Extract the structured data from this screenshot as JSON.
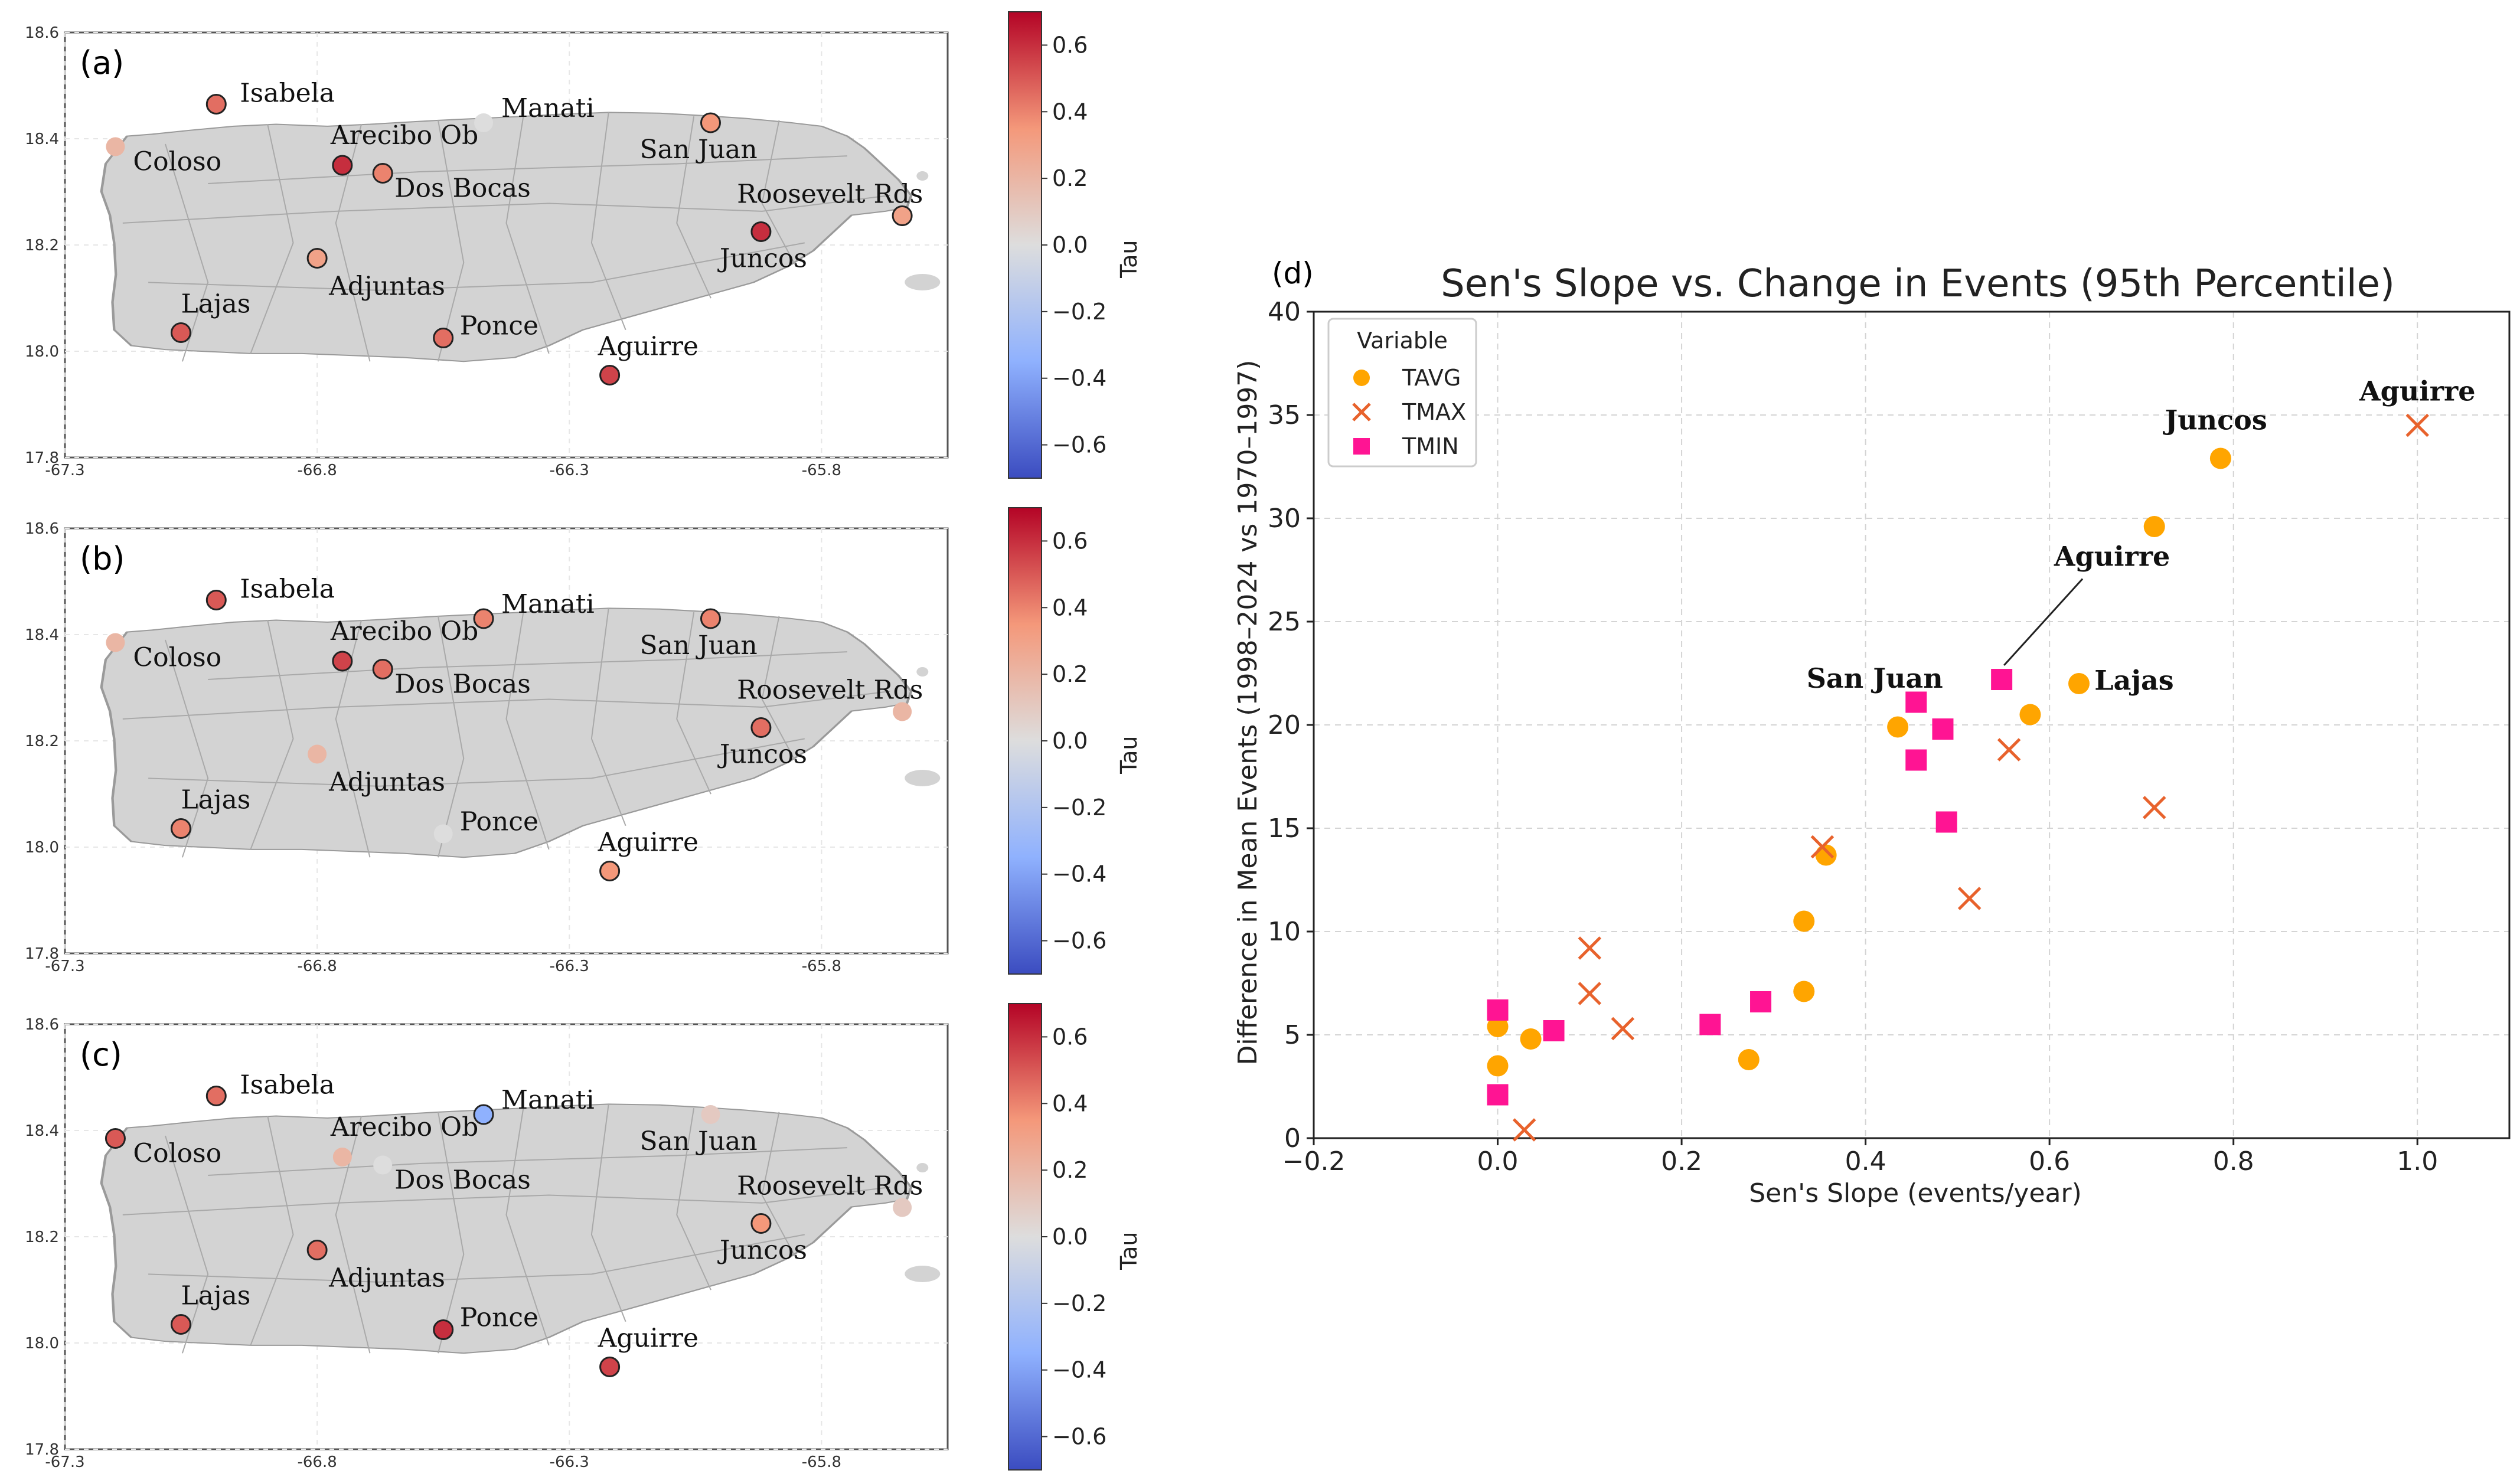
{
  "colors": {
    "land": "#d3d3d3",
    "border": "#a8a8a8",
    "ocean": "#ffffff",
    "tavg": "#ffa500",
    "tmax": "#e8622c",
    "tmin": "#ff1493",
    "grid": "#d4d4d4",
    "cmap_high": "#b40426",
    "cmap_mid": "#dddddd",
    "cmap_low": "#3b4cc0"
  },
  "maps": {
    "x_ticks": [
      "-67.3",
      "-66.8",
      "-66.3",
      "-65.8"
    ],
    "y_ticks": [
      "18.6",
      "18.4",
      "18.2",
      "18.0",
      "17.8"
    ],
    "x_tick_values": [
      -67.3,
      -66.8,
      -66.3,
      -65.8
    ],
    "y_tick_values": [
      18.6,
      18.4,
      18.2,
      18.0,
      17.8
    ],
    "lon_range": [
      -67.3,
      -65.55
    ],
    "lat_range": [
      17.8,
      18.6
    ],
    "colorbar_label": "Tau",
    "colorbar_ticks": [
      "0.6",
      "0.4",
      "0.2",
      "0.0",
      "−0.2",
      "−0.4",
      "−0.6"
    ],
    "colorbar_tick_values": [
      0.6,
      0.4,
      0.2,
      0.0,
      -0.2,
      -0.4,
      -0.6
    ],
    "colorbar_range": [
      -0.7,
      0.7
    ],
    "panels": [
      {
        "label": "(a)",
        "stations": [
          {
            "name": "Isabela",
            "lon": -67.0,
            "lat": 18.465,
            "tau": 0.45,
            "edge": true
          },
          {
            "name": "Coloso",
            "lon": -67.2,
            "lat": 18.385,
            "tau": 0.2,
            "edge": false
          },
          {
            "name": "Arecibo Ob",
            "lon": -66.75,
            "lat": 18.35,
            "tau": 0.6,
            "edge": true
          },
          {
            "name": "Dos Bocas",
            "lon": -66.67,
            "lat": 18.335,
            "tau": 0.4,
            "edge": true
          },
          {
            "name": "Manati",
            "lon": -66.47,
            "lat": 18.43,
            "tau": 0.0,
            "edge": false
          },
          {
            "name": "San Juan",
            "lon": -66.02,
            "lat": 18.43,
            "tau": 0.35,
            "edge": true
          },
          {
            "name": "Roosevelt Rds",
            "lon": -65.64,
            "lat": 18.255,
            "tau": 0.3,
            "edge": true
          },
          {
            "name": "Juncos",
            "lon": -65.92,
            "lat": 18.225,
            "tau": 0.6,
            "edge": true
          },
          {
            "name": "Adjuntas",
            "lon": -66.8,
            "lat": 18.175,
            "tau": 0.3,
            "edge": true
          },
          {
            "name": "Lajas",
            "lon": -67.07,
            "lat": 18.035,
            "tau": 0.5,
            "edge": true
          },
          {
            "name": "Ponce",
            "lon": -66.55,
            "lat": 18.025,
            "tau": 0.45,
            "edge": true
          },
          {
            "name": "Aguirre",
            "lon": -66.22,
            "lat": 17.955,
            "tau": 0.55,
            "edge": true
          }
        ]
      },
      {
        "label": "(b)",
        "stations": [
          {
            "name": "Isabela",
            "lon": -67.0,
            "lat": 18.465,
            "tau": 0.5,
            "edge": true
          },
          {
            "name": "Coloso",
            "lon": -67.2,
            "lat": 18.385,
            "tau": 0.2,
            "edge": false
          },
          {
            "name": "Arecibo Ob",
            "lon": -66.75,
            "lat": 18.35,
            "tau": 0.55,
            "edge": true
          },
          {
            "name": "Dos Bocas",
            "lon": -66.67,
            "lat": 18.335,
            "tau": 0.45,
            "edge": true
          },
          {
            "name": "Manati",
            "lon": -66.47,
            "lat": 18.43,
            "tau": 0.4,
            "edge": true
          },
          {
            "name": "San Juan",
            "lon": -66.02,
            "lat": 18.43,
            "tau": 0.4,
            "edge": true
          },
          {
            "name": "Roosevelt Rds",
            "lon": -65.64,
            "lat": 18.255,
            "tau": 0.2,
            "edge": false
          },
          {
            "name": "Juncos",
            "lon": -65.92,
            "lat": 18.225,
            "tau": 0.45,
            "edge": true
          },
          {
            "name": "Adjuntas",
            "lon": -66.8,
            "lat": 18.175,
            "tau": 0.2,
            "edge": false
          },
          {
            "name": "Lajas",
            "lon": -67.07,
            "lat": 18.035,
            "tau": 0.4,
            "edge": true
          },
          {
            "name": "Ponce",
            "lon": -66.55,
            "lat": 18.025,
            "tau": 0.0,
            "edge": false
          },
          {
            "name": "Aguirre",
            "lon": -66.22,
            "lat": 17.955,
            "tau": 0.35,
            "edge": true
          }
        ]
      },
      {
        "label": "(c)",
        "stations": [
          {
            "name": "Isabela",
            "lon": -67.0,
            "lat": 18.465,
            "tau": 0.45,
            "edge": true
          },
          {
            "name": "Coloso",
            "lon": -67.2,
            "lat": 18.385,
            "tau": 0.5,
            "edge": true
          },
          {
            "name": "Arecibo Ob",
            "lon": -66.75,
            "lat": 18.35,
            "tau": 0.2,
            "edge": false
          },
          {
            "name": "Dos Bocas",
            "lon": -66.67,
            "lat": 18.335,
            "tau": 0.0,
            "edge": false
          },
          {
            "name": "Manati",
            "lon": -66.47,
            "lat": 18.43,
            "tau": -0.35,
            "edge": true
          },
          {
            "name": "San Juan",
            "lon": -66.02,
            "lat": 18.43,
            "tau": 0.1,
            "edge": false
          },
          {
            "name": "Roosevelt Rds",
            "lon": -65.64,
            "lat": 18.255,
            "tau": 0.1,
            "edge": false
          },
          {
            "name": "Juncos",
            "lon": -65.92,
            "lat": 18.225,
            "tau": 0.35,
            "edge": true
          },
          {
            "name": "Adjuntas",
            "lon": -66.8,
            "lat": 18.175,
            "tau": 0.45,
            "edge": true
          },
          {
            "name": "Lajas",
            "lon": -67.07,
            "lat": 18.035,
            "tau": 0.5,
            "edge": true
          },
          {
            "name": "Ponce",
            "lon": -66.55,
            "lat": 18.025,
            "tau": 0.6,
            "edge": true
          },
          {
            "name": "Aguirre",
            "lon": -66.22,
            "lat": 17.955,
            "tau": 0.55,
            "edge": true
          }
        ]
      }
    ]
  },
  "chart_data": {
    "panel_label": "(d)",
    "type": "scatter",
    "title": "Sen's Slope vs. Change in Events (95th Percentile)",
    "xlabel": "Sen's Slope (events/year)",
    "ylabel": "Difference in Mean Events (1998–2024 vs 1970–1997)",
    "xlim": [
      -0.2,
      1.1
    ],
    "ylim": [
      0,
      40
    ],
    "x_ticks": [
      "−0.2",
      "0.0",
      "0.2",
      "0.4",
      "0.6",
      "0.8",
      "1.0"
    ],
    "x_tick_values": [
      -0.2,
      0.0,
      0.2,
      0.4,
      0.6,
      0.8,
      1.0
    ],
    "y_ticks": [
      "0",
      "5",
      "10",
      "15",
      "20",
      "25",
      "30",
      "35",
      "40"
    ],
    "y_tick_values": [
      0,
      5,
      10,
      15,
      20,
      25,
      30,
      35,
      40
    ],
    "grid": true,
    "legend": {
      "title": "Variable",
      "placement": "top-left"
    },
    "series": [
      {
        "name": "TAVG",
        "marker": "circle",
        "color": "#ffa500",
        "x": [
          0.0,
          0.0,
          0.036,
          0.273,
          0.333,
          0.333,
          0.357,
          0.435,
          0.579,
          0.632,
          0.714,
          0.786
        ],
        "y": [
          5.4,
          3.5,
          4.8,
          3.8,
          7.1,
          10.5,
          13.7,
          19.9,
          20.5,
          22.0,
          29.6,
          32.9
        ]
      },
      {
        "name": "TMAX",
        "marker": "x",
        "color": "#e8622c",
        "x": [
          0.029,
          0.1,
          0.1,
          0.136,
          0.353,
          0.513,
          0.556,
          0.714,
          1.0
        ],
        "y": [
          0.4,
          9.2,
          7.0,
          5.3,
          14.1,
          11.6,
          18.8,
          16.0,
          34.5
        ]
      },
      {
        "name": "TMIN",
        "marker": "square",
        "color": "#ff1493",
        "x": [
          0.0,
          0.0,
          0.061,
          0.231,
          0.286,
          0.455,
          0.455,
          0.484,
          0.488,
          0.548
        ],
        "y": [
          6.2,
          2.1,
          5.2,
          5.5,
          6.6,
          21.1,
          18.3,
          19.8,
          15.3,
          22.2
        ]
      }
    ],
    "annotations": [
      {
        "text": "Aguirre",
        "x": 1.0,
        "y": 34.5,
        "dx": 0,
        "dy": 1.2,
        "anchor": "middle",
        "leader": false
      },
      {
        "text": "Juncos",
        "x": 0.786,
        "y": 32.9,
        "dx": -0.005,
        "dy": 1.4,
        "anchor": "middle",
        "leader": false
      },
      {
        "text": "Aguirre",
        "x": 0.548,
        "y": 22.2,
        "dx": 0.12,
        "dy": 5.5,
        "anchor": "middle",
        "leader": true
      },
      {
        "text": "San Juan",
        "x": 0.455,
        "y": 21.1,
        "dx": -0.045,
        "dy": 0.7,
        "anchor": "middle",
        "leader": false
      },
      {
        "text": "Lajas",
        "x": 0.632,
        "y": 22.0,
        "dx": 0.06,
        "dy": -0.3,
        "anchor": "middle",
        "leader": false
      }
    ]
  }
}
